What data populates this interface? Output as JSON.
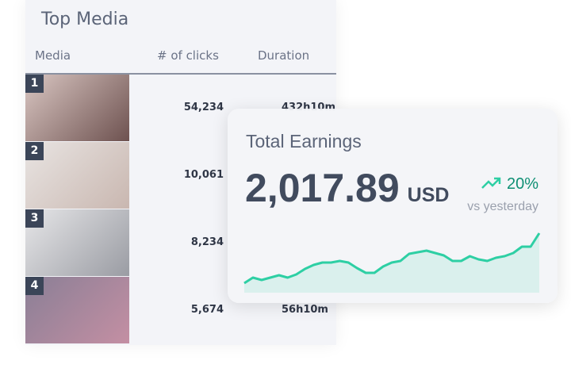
{
  "top_media": {
    "title": "Top Media",
    "columns": [
      "Media",
      "# of clicks",
      "Duration"
    ],
    "rows": [
      {
        "rank": "1",
        "clicks": "54,234",
        "duration": "432h10m",
        "colors": [
          "#d9c6c2",
          "#6e5250"
        ]
      },
      {
        "rank": "2",
        "clicks": "10,061",
        "duration": "",
        "colors": [
          "#e8e4e2",
          "#c9b7b0"
        ]
      },
      {
        "rank": "3",
        "clicks": "8,234",
        "duration": "",
        "colors": [
          "#e6e6e8",
          "#9a9ca3"
        ]
      },
      {
        "rank": "4",
        "clicks": "5,674",
        "duration": "56h10m",
        "colors": [
          "#8a7f96",
          "#c48fa3"
        ]
      }
    ]
  },
  "earnings": {
    "title": "Total Earnings",
    "amount": "2,017.89",
    "currency": "USD",
    "change": "20%",
    "change_icon": "trending-up-icon",
    "comparison": "vs yesterday",
    "accent": "#2ecfa4",
    "sparkline": [
      5,
      12,
      9,
      12,
      15,
      12,
      16,
      23,
      28,
      31,
      31,
      33,
      31,
      24,
      18,
      18,
      26,
      31,
      33,
      42,
      44,
      46,
      43,
      40,
      33,
      33,
      39,
      35,
      33,
      37,
      39,
      43,
      51,
      51,
      68
    ]
  }
}
